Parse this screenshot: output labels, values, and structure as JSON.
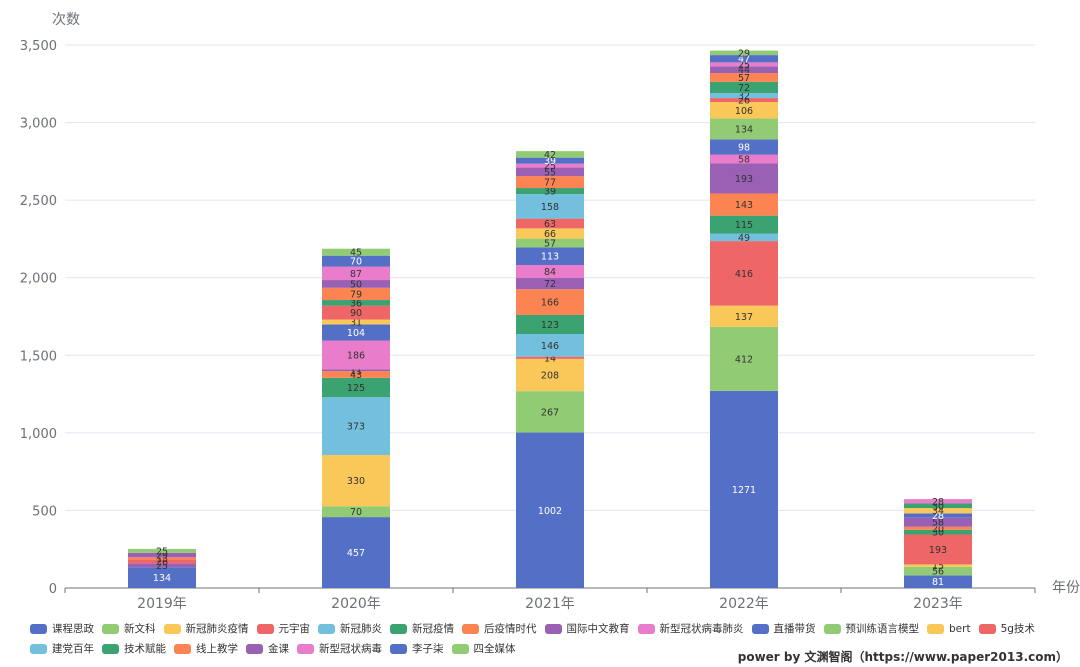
{
  "chart_data": {
    "type": "bar",
    "stacked": true,
    "title": "",
    "ylabel": "次数",
    "xlabel": "年份",
    "ylim": [
      0,
      3500
    ],
    "yticks": [
      0,
      500,
      1000,
      1500,
      2000,
      2500,
      3000,
      3500
    ],
    "ytick_labels": [
      "0",
      "500",
      "1,000",
      "1,500",
      "2,000",
      "2,500",
      "3,000",
      "3,500"
    ],
    "categories": [
      "2019年",
      "2020年",
      "2021年",
      "2022年",
      "2023年"
    ],
    "grid": true,
    "legend_position": "bottom",
    "series": [
      {
        "name": "课程思政",
        "color": "#5470c6",
        "values": [
          134,
          457,
          1002,
          1271,
          81
        ]
      },
      {
        "name": "新文科",
        "color": "#91cc75",
        "values": [
          null,
          70,
          267,
          412,
          56
        ]
      },
      {
        "name": "新冠肺炎疫情",
        "color": "#fac858",
        "values": [
          null,
          330,
          208,
          137,
          15
        ]
      },
      {
        "name": "元宇宙",
        "color": "#ee6666",
        "values": [
          null,
          null,
          14,
          416,
          193
        ]
      },
      {
        "name": "新冠肺炎",
        "color": "#73c0de",
        "values": [
          null,
          373,
          146,
          49,
          null
        ]
      },
      {
        "name": "新冠疫情",
        "color": "#3ba272",
        "values": [
          null,
          125,
          123,
          115,
          30
        ]
      },
      {
        "name": "后疫情时代",
        "color": "#fc8452",
        "values": [
          null,
          43,
          166,
          143,
          20
        ]
      },
      {
        "name": "国际中文教育",
        "color": "#9a60b4",
        "values": [
          25,
          11,
          72,
          193,
          58
        ]
      },
      {
        "name": "新型冠状病毒肺炎",
        "color": "#ea7ccc",
        "values": [
          null,
          186,
          84,
          58,
          null
        ]
      },
      {
        "name": "直播带货",
        "color": "#5470c6",
        "values": [
          null,
          104,
          113,
          98,
          28
        ]
      },
      {
        "name": "预训练语言模型",
        "color": "#91cc75",
        "values": [
          null,
          null,
          57,
          134,
          null
        ]
      },
      {
        "name": "bert",
        "color": "#fac858",
        "values": [
          null,
          31,
          66,
          106,
          34
        ]
      },
      {
        "name": "5g技术",
        "color": "#ee6666",
        "values": [
          26,
          90,
          63,
          26,
          null
        ]
      },
      {
        "name": "建党百年",
        "color": "#73c0de",
        "values": [
          null,
          null,
          158,
          32,
          null
        ]
      },
      {
        "name": "技术赋能",
        "color": "#3ba272",
        "values": [
          null,
          36,
          39,
          72,
          30
        ]
      },
      {
        "name": "线上教学",
        "color": "#fc8452",
        "values": [
          13,
          79,
          77,
          57,
          null
        ]
      },
      {
        "name": "金课",
        "color": "#9a60b4",
        "values": [
          29,
          50,
          55,
          44,
          null
        ]
      },
      {
        "name": "新型冠状病毒",
        "color": "#ea7ccc",
        "values": [
          null,
          87,
          25,
          25,
          28
        ]
      },
      {
        "name": "李子柒",
        "color": "#5470c6",
        "values": [
          null,
          70,
          39,
          47,
          null
        ]
      },
      {
        "name": "四全媒体",
        "color": "#91cc75",
        "values": [
          25,
          45,
          42,
          29,
          null
        ]
      }
    ]
  },
  "footer": {
    "watermark": "power by 文渊智阁（https://www.paper2013.com）"
  }
}
